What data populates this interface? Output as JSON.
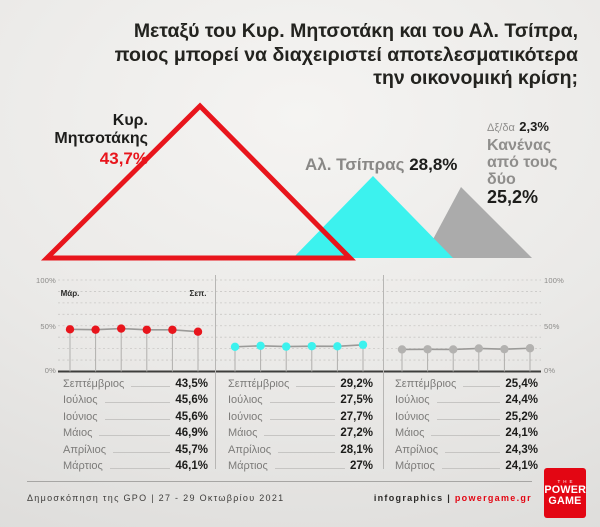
{
  "title": {
    "lines": [
      "Μεταξύ του Κυρ. Μητσοτάκη και του Αλ. Τσίπρα,",
      "ποιος μπορεί να διαχειριστεί αποτελεσματικότερα",
      "την οικονομική κρίση;"
    ]
  },
  "colors": {
    "red": "#e8151c",
    "cyan": "#3cf2ee",
    "gray": "#ababab",
    "dark": "#1d1d1b"
  },
  "summary": {
    "mitsotakis": {
      "name": "Κυρ. Μητσοτάκης",
      "value": "43,7%"
    },
    "tsipras": {
      "name": "Αλ. Τσίπρας",
      "value": "28,8%"
    },
    "dkna": {
      "label": "Δξ/δα",
      "value": "2,3%"
    },
    "none": {
      "line1": "Κανένας",
      "line2": "από τους",
      "line3": "δύο",
      "value": "25,2%"
    }
  },
  "axis": {
    "t100": "100%",
    "t50": "50%",
    "t0": "0%",
    "first_point": "Μάρ.",
    "last_point": "Σεπ."
  },
  "chart_data": [
    {
      "type": "area",
      "title": "Μεταξύ του Κυρ. Μητσοτάκη και του Αλ. Τσίπρα, ποιος μπορεί να διαχειριστεί αποτελεσματικότερα την οικονομική κρίση;",
      "series": [
        {
          "name": "Κυρ. Μητσοτάκης",
          "value": 43.7,
          "color": "#e8151c",
          "style": "outline"
        },
        {
          "name": "Αλ. Τσίπρας",
          "value": 28.8,
          "color": "#3cf2ee",
          "style": "filled"
        },
        {
          "name": "Κανένας από τους δύο",
          "value": 25.2,
          "color": "#ababab",
          "style": "filled"
        },
        {
          "name": "Δξ/δα",
          "value": 2.3,
          "color": null,
          "style": "text-only"
        }
      ]
    },
    {
      "type": "line",
      "x": [
        "Μάρτιος",
        "Απρίλιος",
        "Μάιος",
        "Ιούνιος",
        "Ιούλιος",
        "Σεπτέμβριος"
      ],
      "series": [
        {
          "name": "Κυρ. Μητσοτάκης",
          "color": "#e8151c",
          "values": [
            46.1,
            45.7,
            46.9,
            45.6,
            45.6,
            43.5
          ]
        },
        {
          "name": "Αλ. Τσίπρας",
          "color": "#3cf2ee",
          "values": [
            27,
            28.1,
            27.2,
            27.7,
            27.5,
            29.2
          ]
        },
        {
          "name": "Κανένας από τους δύο",
          "color": "#b3b2b0",
          "values": [
            24.1,
            24.3,
            24.1,
            25.2,
            24.4,
            25.4
          ]
        }
      ],
      "ylim": [
        0,
        100
      ],
      "yticks": [
        "0%",
        "50%",
        "100%"
      ],
      "grid": true,
      "annotations": [
        "Μάρ.",
        "Σεπ."
      ]
    }
  ],
  "tables": [
    {
      "rows": [
        {
          "month": "Σεπτέμβριος",
          "value": "43,5%"
        },
        {
          "month": "Ιούλιος",
          "value": "45,6%"
        },
        {
          "month": "Ιούνιος",
          "value": "45,6%"
        },
        {
          "month": "Μάιος",
          "value": "46,9%"
        },
        {
          "month": "Απρίλιος",
          "value": "45,7%"
        },
        {
          "month": "Μάρτιος",
          "value": "46,1%"
        }
      ]
    },
    {
      "rows": [
        {
          "month": "Σεπτέμβριος",
          "value": "29,2%"
        },
        {
          "month": "Ιούλιος",
          "value": "27,5%"
        },
        {
          "month": "Ιούνιος",
          "value": "27,7%"
        },
        {
          "month": "Μάιος",
          "value": "27,2%"
        },
        {
          "month": "Απρίλιος",
          "value": "28,1%"
        },
        {
          "month": "Μάρτιος",
          "value": "27%"
        }
      ]
    },
    {
      "rows": [
        {
          "month": "Σεπτέμβριος",
          "value": "25,4%"
        },
        {
          "month": "Ιούλιος",
          "value": "24,4%"
        },
        {
          "month": "Ιούνιος",
          "value": "25,2%"
        },
        {
          "month": "Μάιος",
          "value": "24,1%"
        },
        {
          "month": "Απρίλιος",
          "value": "24,3%"
        },
        {
          "month": "Μάρτιος",
          "value": "24,1%"
        }
      ]
    }
  ],
  "footer": {
    "source": "Δημοσκόπηση της GPO | 27 - 29 Οκτωβρίου 2021",
    "credit": "infographics |",
    "site": "powergame.gr",
    "logo": {
      "the": "THE",
      "power": "POWER",
      "game": "GAME"
    }
  }
}
